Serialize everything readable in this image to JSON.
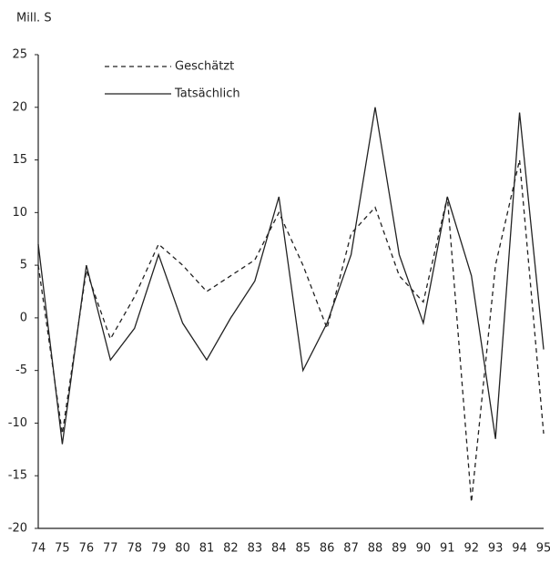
{
  "chart_data": {
    "type": "line",
    "y_axis_label": "Mill. S",
    "categories": [
      "74",
      "75",
      "76",
      "77",
      "78",
      "79",
      "80",
      "81",
      "82",
      "83",
      "84",
      "85",
      "86",
      "87",
      "88",
      "89",
      "90",
      "91",
      "92",
      "93",
      "94",
      "95"
    ],
    "series": [
      {
        "name": "Geschätzt",
        "color": "#222222",
        "dashed": true,
        "values": [
          5,
          -11,
          4.5,
          -2,
          2,
          7,
          5,
          2.5,
          4,
          5.5,
          10,
          5,
          -1,
          8,
          10.5,
          4,
          1.5,
          11.5,
          -17.5,
          5,
          15,
          -11
        ]
      },
      {
        "name": "Tatsächlich",
        "color": "#222222",
        "dashed": false,
        "values": [
          7,
          -12,
          5,
          -4,
          -1,
          6,
          -0.5,
          -4,
          0,
          3.5,
          11.5,
          -5,
          -0.5,
          6,
          20,
          6,
          -0.5,
          11.5,
          4,
          -11.5,
          19.5,
          -3
        ]
      }
    ],
    "ylim": [
      -20,
      25
    ],
    "yticks": [
      -20,
      -15,
      -10,
      -5,
      0,
      5,
      10,
      15,
      20,
      25
    ],
    "grid": false,
    "legend": "top-left"
  }
}
